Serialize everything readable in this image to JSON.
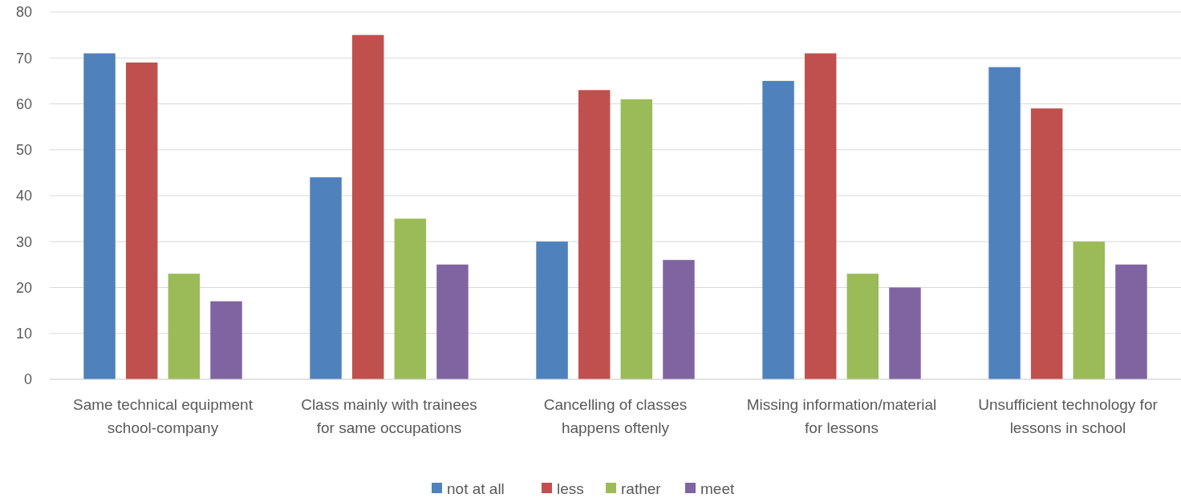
{
  "chart_data": {
    "type": "bar",
    "categories": [
      "Same technical equipment school-company",
      "Class mainly with trainees for same occupations",
      "Cancelling of classes happens oftenly",
      "Missing information/material for lessons",
      "Unsufficient technology for lessons in school"
    ],
    "series": [
      {
        "name": "not at all",
        "color": "#4f81bd",
        "values": [
          71,
          44,
          30,
          65,
          68
        ]
      },
      {
        "name": "less",
        "color": "#c0504d",
        "values": [
          69,
          75,
          63,
          71,
          59
        ]
      },
      {
        "name": "rather",
        "color": "#9bbb59",
        "values": [
          23,
          35,
          61,
          23,
          30
        ]
      },
      {
        "name": "meet",
        "color": "#8064a2",
        "values": [
          17,
          25,
          26,
          20,
          25
        ]
      }
    ],
    "ylim": [
      0,
      80
    ],
    "yticks": [
      0,
      10,
      20,
      30,
      40,
      50,
      60,
      70,
      80
    ],
    "grid": "y",
    "legend": "bottom"
  }
}
